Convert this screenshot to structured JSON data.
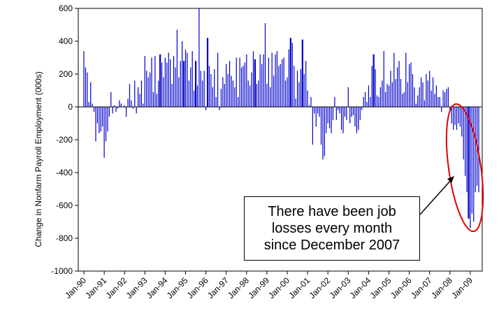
{
  "chart_data": {
    "type": "bar",
    "ylabel": "Change in Nonfarm Payroll Employment (000s)",
    "ylim": [
      -1000,
      600
    ],
    "yticks": [
      "600",
      "400",
      "200",
      "0",
      "-200",
      "-400",
      "-600",
      "-800",
      "-1000"
    ],
    "x_tick_labels": [
      "Jan-90",
      "Jan-91",
      "Jan-92",
      "Jan-93",
      "Jan-94",
      "Jan-95",
      "Jan-96",
      "Jan-97",
      "Jan-98",
      "Jan-99",
      "Jan-00",
      "Jan-01",
      "Jan-02",
      "Jan-03",
      "Jan-04",
      "Jan-05",
      "Jan-06",
      "Jan-07",
      "Jan-08",
      "Jan-09"
    ],
    "series": [
      {
        "color": "#0000cc",
        "values_by_year": {
          "1990": [
            340,
            240,
            210,
            30,
            150,
            20,
            -30,
            -210,
            -100,
            -160,
            -150,
            -120
          ],
          "1991": [
            -310,
            -210,
            -150,
            -60,
            90,
            -40,
            10,
            -30,
            -10,
            40,
            20,
            0
          ],
          "1992": [
            10,
            -60,
            50,
            140,
            40,
            -10,
            160,
            -40,
            120,
            80,
            160,
            20
          ],
          "1993": [
            310,
            220,
            180,
            210,
            300,
            90,
            310,
            80,
            160,
            320,
            270,
            180
          ],
          "1994": [
            300,
            270,
            330,
            290,
            140,
            310,
            240,
            470,
            180,
            280,
            400,
            280
          ],
          "1995": [
            350,
            330,
            160,
            240,
            340,
            100,
            280,
            130,
            600,
            220,
            160,
            220
          ],
          "1996": [
            -20,
            420,
            250,
            200,
            120,
            230,
            60,
            330,
            -20,
            110,
            180,
            140
          ],
          "1997": [
            260,
            200,
            280,
            190,
            160,
            120,
            300,
            60,
            300,
            240,
            250,
            270
          ],
          "1998": [
            320,
            160,
            130,
            210,
            340,
            290,
            140,
            160,
            320,
            260,
            320,
            510
          ],
          "1999": [
            140,
            300,
            120,
            330,
            190,
            320,
            340,
            250,
            260,
            290,
            300,
            160
          ],
          "2000": [
            180,
            350,
            420,
            390,
            250,
            50,
            220,
            150,
            230,
            410,
            200,
            280
          ],
          "2001": [
            100,
            10,
            60,
            -230,
            -40,
            -120,
            -40,
            -60,
            -230,
            -320,
            -300,
            -160
          ],
          "2002": [
            -100,
            -130,
            -160,
            -80,
            60,
            -80,
            -20,
            -40,
            -140,
            -160,
            -60,
            -80
          ],
          "2003": [
            120,
            -100,
            -60,
            -50,
            -120,
            -160,
            -140,
            -80,
            -20,
            60,
            90,
            30
          ],
          "2004": [
            130,
            60,
            250,
            320,
            230,
            70,
            60,
            120,
            160,
            340,
            90,
            140
          ],
          "2005": [
            130,
            220,
            150,
            330,
            170,
            240,
            280,
            170,
            80,
            90,
            330,
            150
          ],
          "2006": [
            260,
            270,
            200,
            120,
            20,
            70,
            120,
            180,
            150,
            40,
            200,
            160
          ],
          "2007": [
            220,
            100,
            180,
            80,
            130,
            60,
            60,
            -30,
            100,
            90,
            110,
            120
          ],
          "2008": [
            -20,
            -100,
            -140,
            -110,
            -140,
            -100,
            -120,
            -180,
            -320,
            -420,
            -520,
            -680
          ],
          "2009": [
            -740,
            -650,
            -700,
            -520,
            -480,
            -520
          ]
        }
      }
    ],
    "annotation": {
      "lines": [
        "There have been job",
        "losses every month",
        "since December 2007"
      ]
    }
  }
}
